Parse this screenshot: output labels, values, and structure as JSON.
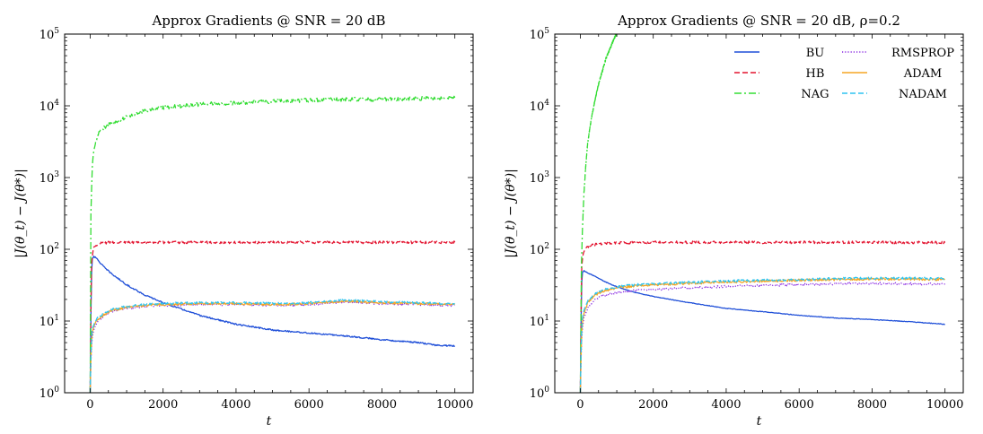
{
  "chart_data": [
    {
      "type": "line",
      "title": "Approx Gradients @ SNR = 20 dB",
      "xlabel": "t",
      "ylabel": "|J(θ_t) − J(θ*)|",
      "xlim": [
        -700,
        10500
      ],
      "ylim": [
        1,
        100000
      ],
      "yscale": "log",
      "xticks": [
        0,
        2000,
        4000,
        6000,
        8000,
        10000
      ],
      "yticks": [
        1,
        10,
        100,
        1000,
        10000,
        100000
      ],
      "ytick_labels": [
        {
          "base": "10",
          "exp": "0"
        },
        {
          "base": "10",
          "exp": "1"
        },
        {
          "base": "10",
          "exp": "2"
        },
        {
          "base": "10",
          "exp": "3"
        },
        {
          "base": "10",
          "exp": "4"
        },
        {
          "base": "10",
          "exp": "5"
        }
      ],
      "grid": false,
      "legend": null,
      "series": [
        {
          "name": "BU",
          "color": "#1f4fd8",
          "dash": "solid",
          "noise": 0.01,
          "x": [
            0,
            30,
            60,
            100,
            200,
            400,
            600,
            800,
            1000,
            1500,
            2000,
            3000,
            4000,
            5000,
            6000,
            7000,
            8000,
            9000,
            9500,
            10000
          ],
          "y": [
            1,
            40,
            75,
            80,
            72,
            55,
            45,
            38,
            32,
            23,
            18,
            12,
            9,
            7.5,
            6.8,
            6.2,
            5.5,
            5,
            4.6,
            4.5
          ]
        },
        {
          "name": "HB",
          "color": "#e3132f",
          "dash": "dashed",
          "noise": 0.018,
          "x": [
            0,
            30,
            80,
            150,
            300,
            600,
            1000,
            2000,
            4000,
            6000,
            8000,
            10000
          ],
          "y": [
            1,
            60,
            100,
            115,
            122,
            125,
            125,
            125,
            125,
            125,
            125,
            125
          ]
        },
        {
          "name": "NAG",
          "color": "#33dd33",
          "dash": "dashdot",
          "noise": 0.028,
          "x": [
            0,
            20,
            50,
            100,
            200,
            300,
            500,
            800,
            1000,
            1500,
            2000,
            3000,
            4000,
            5000,
            6000,
            7000,
            8000,
            9000,
            10000
          ],
          "y": [
            1,
            300,
            1200,
            2500,
            3800,
            4700,
            5500,
            6200,
            7000,
            8500,
            9500,
            10500,
            11000,
            11500,
            12000,
            12300,
            12300,
            12600,
            13000
          ]
        },
        {
          "name": "RMSPROP",
          "color": "#8a2be2",
          "dash": "dotted",
          "noise": 0.015,
          "x": [
            0,
            30,
            60,
            100,
            200,
            400,
            600,
            1000,
            1500,
            2000,
            3000,
            4000,
            5000,
            6000,
            7000,
            8000,
            9000,
            10000
          ],
          "y": [
            1,
            4,
            6,
            7.5,
            10,
            12,
            13.5,
            15,
            16,
            16.5,
            17,
            17,
            16.5,
            17,
            18.5,
            17.5,
            17,
            16.5
          ]
        },
        {
          "name": "ADAM",
          "color": "#f5a623",
          "dash": "solid",
          "noise": 0.015,
          "x": [
            0,
            30,
            60,
            100,
            200,
            400,
            600,
            1000,
            1500,
            2000,
            3000,
            4000,
            5000,
            6000,
            7000,
            8000,
            9000,
            10000
          ],
          "y": [
            1,
            5,
            7,
            8.5,
            10.5,
            12.5,
            14,
            15.5,
            16.5,
            17,
            17.5,
            17.5,
            17,
            17.5,
            19,
            18,
            17.5,
            17
          ]
        },
        {
          "name": "NADAM",
          "color": "#2ec4f0",
          "dash": "dashed",
          "noise": 0.015,
          "x": [
            0,
            30,
            60,
            100,
            200,
            400,
            600,
            1000,
            1500,
            2000,
            3000,
            4000,
            5000,
            6000,
            7000,
            8000,
            9000,
            10000
          ],
          "y": [
            1,
            5.5,
            8,
            9,
            11,
            13,
            14.5,
            16,
            17,
            17.5,
            18,
            18,
            17.5,
            18,
            19.5,
            18.5,
            18,
            17.5
          ]
        }
      ]
    },
    {
      "type": "line",
      "title": "Approx Gradients @ SNR = 20 dB, ρ=0.2",
      "xlabel": "t",
      "ylabel": "|J(θ_t) − J(θ*)|",
      "xlim": [
        -700,
        10500
      ],
      "ylim": [
        1,
        100000
      ],
      "yscale": "log",
      "xticks": [
        0,
        2000,
        4000,
        6000,
        8000,
        10000
      ],
      "yticks": [
        1,
        10,
        100,
        1000,
        10000,
        100000
      ],
      "ytick_labels": [
        {
          "base": "10",
          "exp": "0"
        },
        {
          "base": "10",
          "exp": "1"
        },
        {
          "base": "10",
          "exp": "2"
        },
        {
          "base": "10",
          "exp": "3"
        },
        {
          "base": "10",
          "exp": "4"
        },
        {
          "base": "10",
          "exp": "5"
        }
      ],
      "grid": false,
      "legend": "top-right",
      "series": [
        {
          "name": "BU",
          "color": "#1f4fd8",
          "dash": "solid",
          "noise": 0.004,
          "x": [
            0,
            30,
            60,
            100,
            200,
            400,
            600,
            800,
            1000,
            1500,
            2000,
            3000,
            4000,
            5000,
            6000,
            7000,
            8000,
            9000,
            10000
          ],
          "y": [
            1,
            30,
            48,
            50,
            47,
            42,
            37,
            33,
            30,
            25,
            22,
            18,
            15,
            13.5,
            12,
            11,
            10.5,
            9.8,
            9
          ]
        },
        {
          "name": "HB",
          "color": "#e3132f",
          "dash": "dashed",
          "noise": 0.018,
          "x": [
            0,
            30,
            80,
            150,
            300,
            600,
            1000,
            2000,
            4000,
            6000,
            8000,
            10000
          ],
          "y": [
            1,
            50,
            90,
            105,
            115,
            120,
            123,
            125,
            125,
            125,
            125,
            124
          ]
        },
        {
          "name": "NAG",
          "color": "#33dd33",
          "dash": "dashdot",
          "noise": 0.018,
          "x": [
            0,
            30,
            60,
            100,
            150,
            200,
            300,
            400,
            500,
            600,
            700,
            800,
            900,
            960,
            1000
          ],
          "y": [
            1,
            60,
            200,
            600,
            1500,
            3000,
            6500,
            12000,
            20000,
            30000,
            45000,
            60000,
            80000,
            95000,
            100000
          ]
        },
        {
          "name": "RMSPROP",
          "color": "#8a2be2",
          "dash": "dotted",
          "noise": 0.016,
          "x": [
            0,
            30,
            60,
            100,
            200,
            400,
            600,
            1000,
            1500,
            2000,
            3000,
            4000,
            5000,
            6000,
            7000,
            8000,
            9000,
            10000
          ],
          "y": [
            1,
            5,
            8,
            11,
            15,
            20,
            22.5,
            25,
            26.5,
            27.5,
            29,
            30.5,
            31.5,
            32,
            33,
            33.5,
            33,
            32.5
          ]
        },
        {
          "name": "ADAM",
          "color": "#f5a623",
          "dash": "solid",
          "noise": 0.016,
          "x": [
            0,
            30,
            60,
            100,
            200,
            400,
            600,
            1000,
            1500,
            2000,
            3000,
            4000,
            5000,
            6000,
            7000,
            8000,
            9000,
            10000
          ],
          "y": [
            1,
            6,
            10,
            13,
            18,
            23,
            26,
            29,
            31,
            32,
            33.5,
            35,
            36,
            37,
            38,
            38.5,
            38.5,
            38
          ]
        },
        {
          "name": "NADAM",
          "color": "#2ec4f0",
          "dash": "dashed",
          "noise": 0.016,
          "x": [
            0,
            30,
            60,
            100,
            200,
            400,
            600,
            1000,
            1500,
            2000,
            3000,
            4000,
            5000,
            6000,
            7000,
            8000,
            9000,
            10000
          ],
          "y": [
            1,
            7,
            11,
            14,
            19,
            24,
            27,
            30,
            32,
            33,
            34.5,
            36,
            37,
            38,
            39,
            39.5,
            39.5,
            39
          ]
        }
      ]
    }
  ]
}
